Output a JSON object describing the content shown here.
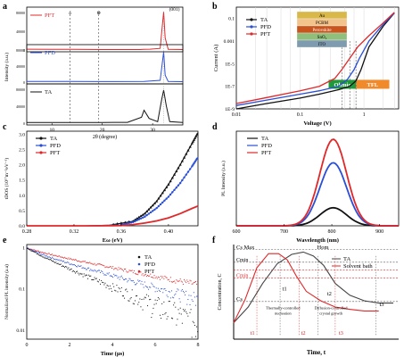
{
  "colors": {
    "TA": "#111111",
    "PFD": "#2a4fd6",
    "PFT": "#e0282a"
  },
  "chart_data": [
    {
      "panel": "a",
      "type": "line",
      "xlabel": "2θ (degree)",
      "ylabel": "Intensity (a.u.)",
      "xticks": [
        "10",
        "20",
        "30"
      ],
      "yticks": [
        "0",
        "40000",
        "80000"
      ],
      "peak_label": "(001)",
      "marker_labels": [
        "δ",
        "⊗"
      ],
      "series": [
        {
          "name": "PFT",
          "x": [
            5,
            10,
            13.5,
            14.2,
            20,
            27.5,
            28.3,
            29.5,
            31.5,
            32.2,
            32.5,
            33.1,
            36
          ],
          "y": [
            2000,
            1800,
            1600,
            1500,
            1200,
            1100,
            1600,
            1900,
            4000,
            95000,
            30000,
            1500,
            1000
          ]
        },
        {
          "name": "PFD",
          "x": [
            5,
            13.5,
            20,
            28.3,
            31.5,
            32.2,
            32.5,
            33.1,
            36
          ],
          "y": [
            1000,
            1200,
            900,
            1000,
            3000,
            52000,
            12000,
            1000,
            800
          ]
        },
        {
          "name": "TA",
          "x": [
            5,
            12,
            13.5,
            20,
            25,
            27.8,
            28.3,
            29.3,
            31,
            31.8,
            32.2,
            32.7,
            33.4,
            36
          ],
          "y": [
            1000,
            1100,
            1000,
            1200,
            1400,
            10000,
            22000,
            8000,
            2500,
            40000,
            56000,
            30000,
            2500,
            1200
          ]
        }
      ]
    },
    {
      "panel": "b",
      "type": "line",
      "xlabel": "Voltage (V)",
      "ylabel": "Current (A)",
      "xscale": "log",
      "yscale": "log",
      "xticks": [
        "0.01",
        "0.1",
        "1"
      ],
      "yticks": [
        "1E-9",
        "1E-7",
        "1E-5",
        "0.001",
        "0.1"
      ],
      "region_labels": [
        "Ohmic",
        "TFL"
      ],
      "device_layers": [
        "Au",
        "PCBM",
        "Perovskite",
        "SnO₂",
        "ITO"
      ],
      "series": [
        {
          "name": "TA",
          "x": [
            0.01,
            0.03,
            0.1,
            0.2,
            0.4,
            0.6,
            0.75,
            0.9,
            1.2,
            2,
            3
          ],
          "y": [
            1e-09,
            3e-09,
            9e-09,
            2e-08,
            5e-08,
            1e-07,
            3e-07,
            3e-06,
            0.0003,
            0.02,
            0.3
          ]
        },
        {
          "name": "PFD",
          "x": [
            0.01,
            0.03,
            0.1,
            0.2,
            0.4,
            0.55,
            0.7,
            0.85,
            1.2,
            2,
            3
          ],
          "y": [
            2e-09,
            6e-09,
            2e-08,
            4e-08,
            1e-07,
            4e-07,
            3e-06,
            3e-05,
            0.001,
            0.03,
            0.3
          ]
        },
        {
          "name": "PFT",
          "x": [
            0.01,
            0.03,
            0.1,
            0.2,
            0.35,
            0.45,
            0.6,
            0.8,
            1.2,
            2,
            3
          ],
          "y": [
            3e-09,
            1e-08,
            4e-08,
            1e-07,
            5e-07,
            3e-06,
            3e-05,
            0.0003,
            0.003,
            0.04,
            0.35
          ]
        }
      ]
    },
    {
      "panel": "c",
      "type": "line",
      "xlabel": "Eω (eV)",
      "ylabel": "tDOS (10¹⁷m⁻³eV⁻¹)",
      "xticks": [
        "0.28",
        "0.32",
        "0.36",
        "0.40"
      ],
      "yticks": [
        "0.0",
        "0.5",
        "1.0",
        "1.5",
        "2.0",
        "2.5",
        "3.0"
      ],
      "xlim": [
        0.28,
        0.425
      ],
      "ylim": [
        0,
        3.1
      ],
      "series": [
        {
          "name": "TA",
          "x": [
            0.28,
            0.33,
            0.35,
            0.37,
            0.38,
            0.39,
            0.4,
            0.41,
            0.42,
            0.425
          ],
          "y": [
            0,
            0,
            0.02,
            0.15,
            0.4,
            0.8,
            1.35,
            2.0,
            2.7,
            3.05
          ]
        },
        {
          "name": "PFD",
          "x": [
            0.28,
            0.33,
            0.36,
            0.37,
            0.38,
            0.39,
            0.4,
            0.41,
            0.42,
            0.425
          ],
          "y": [
            0,
            0,
            0.03,
            0.12,
            0.3,
            0.58,
            0.95,
            1.4,
            1.95,
            2.25
          ]
        },
        {
          "name": "PFT",
          "x": [
            0.28,
            0.34,
            0.36,
            0.37,
            0.38,
            0.39,
            0.4,
            0.41,
            0.42,
            0.425
          ],
          "y": [
            0,
            0,
            0.01,
            0.04,
            0.09,
            0.16,
            0.26,
            0.4,
            0.57,
            0.65
          ]
        }
      ]
    },
    {
      "panel": "d",
      "type": "line",
      "xlabel": "Wavelength (nm)",
      "ylabel": "PL Intensity (a.u.)",
      "xticks": [
        "600",
        "700",
        "800",
        "900"
      ],
      "xlim": [
        600,
        940
      ],
      "ylim": [
        0,
        1.05
      ],
      "series": [
        {
          "name": "TA",
          "center": 803,
          "width": 28,
          "peak": 0.2
        },
        {
          "name": "PFD",
          "center": 803,
          "width": 28,
          "peak": 0.7
        },
        {
          "name": "PFT",
          "center": 803,
          "width": 28,
          "peak": 0.96
        }
      ]
    },
    {
      "panel": "e",
      "type": "scatter",
      "xlabel": "Time (µs)",
      "ylabel": "Normalized PL intensity (a.u)",
      "yscale": "log",
      "xticks": [
        "0",
        "2",
        "4",
        "6",
        "8"
      ],
      "yticks": [
        "0.01",
        "0.1",
        "1"
      ],
      "xlim": [
        0,
        8
      ],
      "ylim": [
        0.006,
        1.2
      ],
      "series": [
        {
          "name": "TA",
          "decay": [
            [
              0.6,
              0.18
            ],
            [
              2.0,
              0.82
            ]
          ]
        },
        {
          "name": "PFD",
          "decay": [
            [
              0.6,
              0.2
            ],
            [
              3.0,
              0.8
            ]
          ]
        },
        {
          "name": "PFT",
          "decay": [
            [
              0.8,
              0.15
            ],
            [
              4.2,
              0.85
            ]
          ]
        }
      ]
    },
    {
      "panel": "f",
      "type": "line",
      "xlabel": "Time, t",
      "ylabel": "Concentration, C",
      "level_labels": [
        "Cs Max",
        "Cmin",
        "Cmin",
        "Cs"
      ],
      "hom_label": "Hom",
      "time_labels": [
        "t1",
        "t2",
        "t3",
        "t1",
        "t2",
        "t3"
      ],
      "stage_labels": [
        "Thermally-controlled nucleation",
        "Diffusion-controlled crystal growth"
      ],
      "series": [
        {
          "name": "TA",
          "x": [
            0,
            1,
            2,
            3,
            4,
            4.8,
            5.5,
            6.2,
            7,
            8,
            9,
            10,
            11
          ],
          "y": [
            0.05,
            0.25,
            0.55,
            0.8,
            0.92,
            0.95,
            0.9,
            0.78,
            0.55,
            0.4,
            0.33,
            0.3,
            0.3
          ]
        },
        {
          "name": "Solvent bath",
          "x": [
            0,
            0.8,
            1.6,
            2.4,
            3.1,
            3.7,
            4.3,
            5,
            6,
            7,
            8,
            9,
            10
          ],
          "y": [
            0.05,
            0.35,
            0.75,
            0.93,
            0.93,
            0.85,
            0.65,
            0.45,
            0.33,
            0.25,
            0.22,
            0.2,
            0.2
          ]
        }
      ]
    }
  ]
}
